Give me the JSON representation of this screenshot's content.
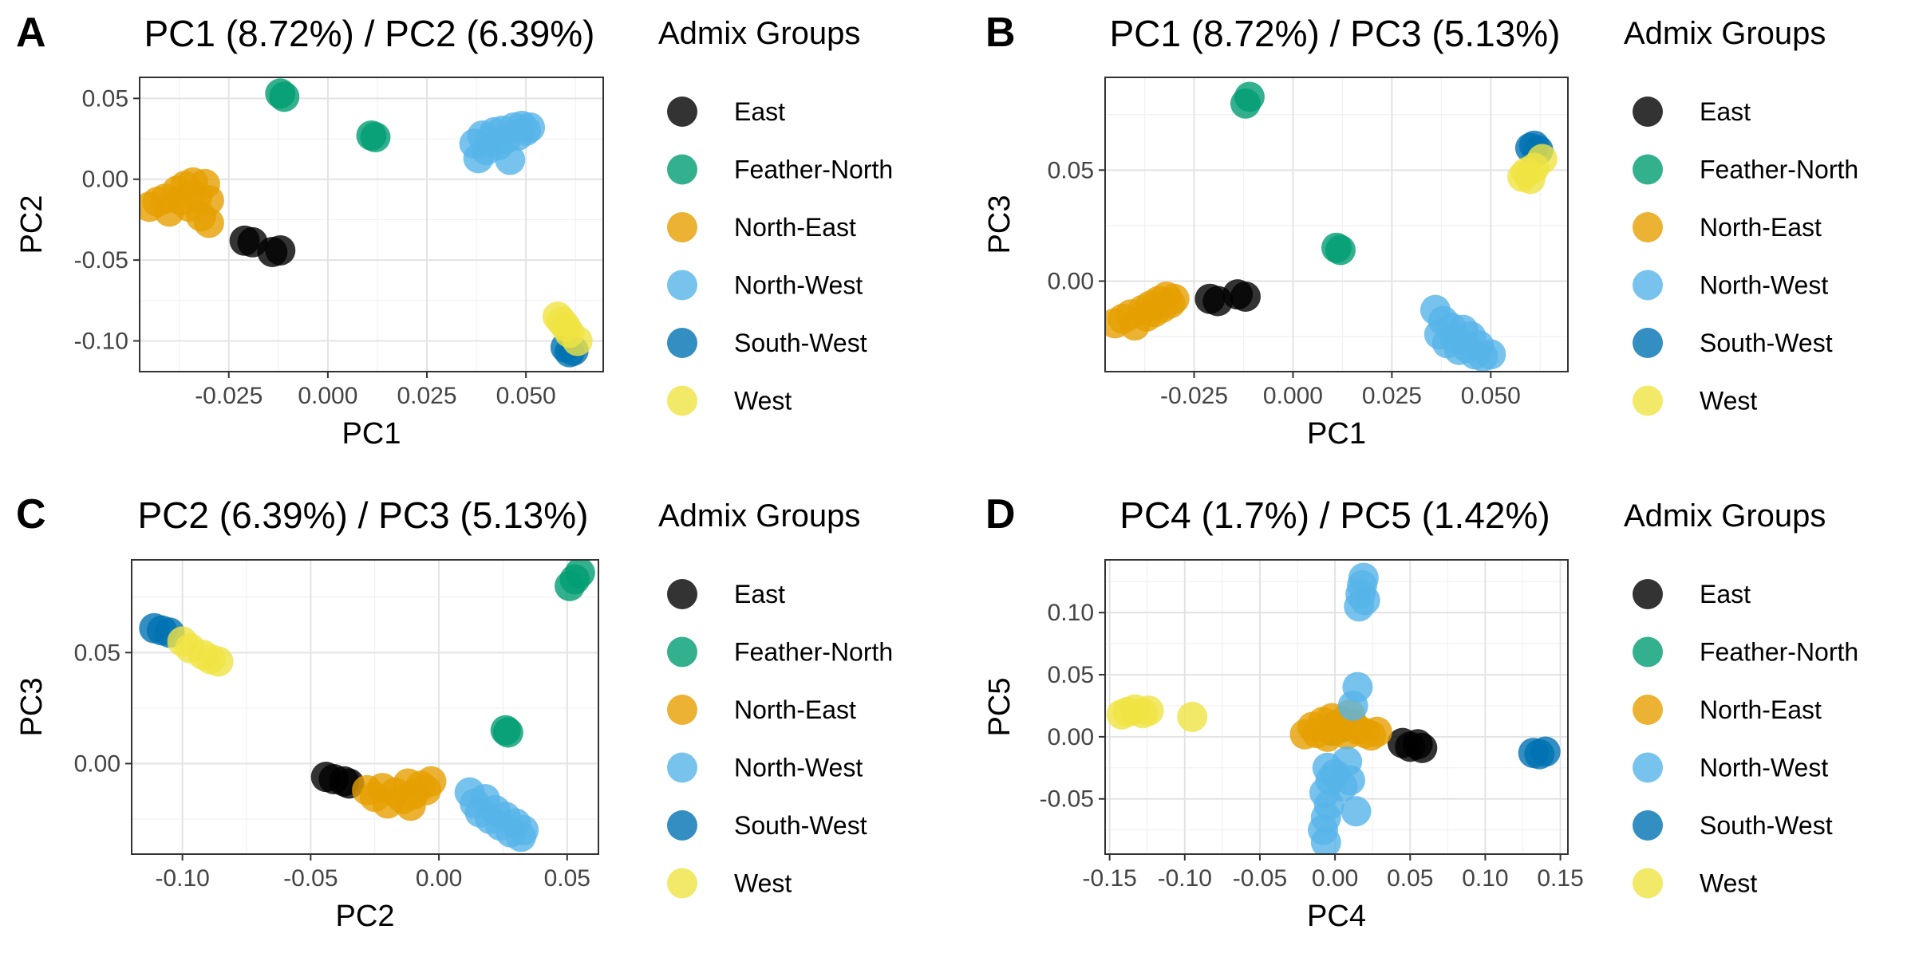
{
  "legend": {
    "title": "Admix Groups",
    "groups": [
      {
        "name": "East",
        "color": "#000000"
      },
      {
        "name": "Feather-North",
        "color": "#009E73"
      },
      {
        "name": "North-East",
        "color": "#E69F00"
      },
      {
        "name": "North-West",
        "color": "#56B4E9"
      },
      {
        "name": "South-West",
        "color": "#0072B2"
      },
      {
        "name": "West",
        "color": "#F0E442"
      }
    ]
  },
  "chart_data": [
    {
      "panel": "A",
      "type": "scatter",
      "title": "PC1 (8.72%) / PC2 (6.39%)",
      "xlabel": "PC1",
      "ylabel": "PC2",
      "xlim": [
        -0.0475,
        0.0695
      ],
      "ylim": [
        -0.119,
        0.063
      ],
      "xticks": [
        -0.025,
        0.0,
        0.025,
        0.05
      ],
      "xtick_labels": [
        "-0.025",
        "0.000",
        "0.025",
        "0.050"
      ],
      "yticks": [
        -0.1,
        -0.05,
        0.0,
        0.05
      ],
      "ytick_labels": [
        "-0.10",
        "-0.05",
        "0.00",
        "0.05"
      ],
      "grid": true,
      "legend_position": "right",
      "series": [
        {
          "name": "East",
          "points": [
            [
              -0.021,
              -0.038
            ],
            [
              -0.019,
              -0.039
            ],
            [
              -0.014,
              -0.045
            ],
            [
              -0.012,
              -0.044
            ]
          ]
        },
        {
          "name": "Feather-North",
          "points": [
            [
              -0.012,
              0.053
            ],
            [
              -0.011,
              0.051
            ],
            [
              0.011,
              0.027
            ],
            [
              0.012,
              0.026
            ]
          ]
        },
        {
          "name": "North-East",
          "points": [
            [
              -0.045,
              -0.017
            ],
            [
              -0.043,
              -0.014
            ],
            [
              -0.041,
              -0.012
            ],
            [
              -0.04,
              -0.02
            ],
            [
              -0.038,
              -0.007
            ],
            [
              -0.037,
              -0.013
            ],
            [
              -0.036,
              -0.004
            ],
            [
              -0.035,
              -0.017
            ],
            [
              -0.034,
              -0.002
            ],
            [
              -0.033,
              -0.011
            ],
            [
              -0.032,
              -0.023
            ],
            [
              -0.031,
              -0.003
            ],
            [
              -0.03,
              -0.027
            ],
            [
              -0.03,
              -0.013
            ]
          ]
        },
        {
          "name": "North-West",
          "points": [
            [
              0.037,
              0.022
            ],
            [
              0.038,
              0.013
            ],
            [
              0.039,
              0.027
            ],
            [
              0.04,
              0.018
            ],
            [
              0.041,
              0.024
            ],
            [
              0.042,
              0.029
            ],
            [
              0.043,
              0.021
            ],
            [
              0.044,
              0.03
            ],
            [
              0.045,
              0.025
            ],
            [
              0.046,
              0.012
            ],
            [
              0.047,
              0.032
            ],
            [
              0.048,
              0.027
            ],
            [
              0.049,
              0.033
            ],
            [
              0.05,
              0.03
            ],
            [
              0.051,
              0.032
            ]
          ]
        },
        {
          "name": "South-West",
          "points": [
            [
              0.06,
              -0.104
            ],
            [
              0.061,
              -0.107
            ],
            [
              0.062,
              -0.106
            ]
          ]
        },
        {
          "name": "West",
          "points": [
            [
              0.058,
              -0.085
            ],
            [
              0.059,
              -0.088
            ],
            [
              0.06,
              -0.091
            ],
            [
              0.061,
              -0.095
            ],
            [
              0.063,
              -0.1
            ]
          ]
        }
      ]
    },
    {
      "panel": "B",
      "type": "scatter",
      "title": "PC1 (8.72%) / PC3 (5.13%)",
      "xlabel": "PC1",
      "ylabel": "PC3",
      "xlim": [
        -0.0475,
        0.0695
      ],
      "ylim": [
        -0.0408,
        0.0918
      ],
      "xticks": [
        -0.025,
        0.0,
        0.025,
        0.05
      ],
      "xtick_labels": [
        "-0.025",
        "0.000",
        "0.025",
        "0.050"
      ],
      "yticks": [
        0.0,
        0.05
      ],
      "ytick_labels": [
        "0.00",
        "0.05"
      ],
      "grid": true,
      "legend_position": "right",
      "series": [
        {
          "name": "East",
          "points": [
            [
              -0.021,
              -0.008
            ],
            [
              -0.019,
              -0.009
            ],
            [
              -0.014,
              -0.006
            ],
            [
              -0.012,
              -0.007
            ]
          ]
        },
        {
          "name": "Feather-North",
          "points": [
            [
              -0.012,
              0.08
            ],
            [
              -0.011,
              0.083
            ],
            [
              0.011,
              0.015
            ],
            [
              0.012,
              0.014
            ]
          ]
        },
        {
          "name": "North-East",
          "points": [
            [
              -0.045,
              -0.019
            ],
            [
              -0.043,
              -0.017
            ],
            [
              -0.041,
              -0.015
            ],
            [
              -0.04,
              -0.02
            ],
            [
              -0.038,
              -0.013
            ],
            [
              -0.037,
              -0.016
            ],
            [
              -0.036,
              -0.011
            ],
            [
              -0.035,
              -0.014
            ],
            [
              -0.034,
              -0.009
            ],
            [
              -0.033,
              -0.012
            ],
            [
              -0.032,
              -0.007
            ],
            [
              -0.031,
              -0.01
            ],
            [
              -0.03,
              -0.008
            ]
          ]
        },
        {
          "name": "North-West",
          "points": [
            [
              0.036,
              -0.013
            ],
            [
              0.037,
              -0.024
            ],
            [
              0.038,
              -0.018
            ],
            [
              0.039,
              -0.028
            ],
            [
              0.04,
              -0.021
            ],
            [
              0.041,
              -0.026
            ],
            [
              0.042,
              -0.031
            ],
            [
              0.043,
              -0.022
            ],
            [
              0.044,
              -0.03
            ],
            [
              0.045,
              -0.025
            ],
            [
              0.046,
              -0.033
            ],
            [
              0.047,
              -0.029
            ],
            [
              0.048,
              -0.034
            ],
            [
              0.05,
              -0.033
            ]
          ]
        },
        {
          "name": "South-West",
          "points": [
            [
              0.06,
              0.06
            ],
            [
              0.061,
              0.061
            ],
            [
              0.062,
              0.059
            ]
          ]
        },
        {
          "name": "West",
          "points": [
            [
              0.058,
              0.047
            ],
            [
              0.059,
              0.049
            ],
            [
              0.06,
              0.046
            ],
            [
              0.061,
              0.051
            ],
            [
              0.063,
              0.055
            ]
          ]
        }
      ]
    },
    {
      "panel": "C",
      "type": "scatter",
      "title": "PC2 (6.39%) / PC3 (5.13%)",
      "xlabel": "PC2",
      "ylabel": "PC3",
      "xlim": [
        -0.1198,
        0.0622
      ],
      "ylim": [
        -0.0408,
        0.0918
      ],
      "xticks": [
        -0.1,
        -0.05,
        0.0,
        0.05
      ],
      "xtick_labels": [
        "-0.10",
        "-0.05",
        "0.00",
        "0.05"
      ],
      "yticks": [
        0.0,
        0.05
      ],
      "ytick_labels": [
        "0.00",
        "0.05"
      ],
      "grid": true,
      "legend_position": "right",
      "series": [
        {
          "name": "East",
          "points": [
            [
              -0.044,
              -0.006
            ],
            [
              -0.041,
              -0.007
            ],
            [
              -0.037,
              -0.008
            ],
            [
              -0.035,
              -0.009
            ]
          ]
        },
        {
          "name": "Feather-North",
          "points": [
            [
              0.026,
              0.015
            ],
            [
              0.027,
              0.014
            ],
            [
              0.051,
              0.08
            ],
            [
              0.053,
              0.083
            ],
            [
              0.055,
              0.086
            ]
          ]
        },
        {
          "name": "North-East",
          "points": [
            [
              -0.028,
              -0.012
            ],
            [
              -0.025,
              -0.015
            ],
            [
              -0.022,
              -0.011
            ],
            [
              -0.02,
              -0.018
            ],
            [
              -0.017,
              -0.013
            ],
            [
              -0.014,
              -0.016
            ],
            [
              -0.012,
              -0.009
            ],
            [
              -0.01,
              -0.014
            ],
            [
              -0.007,
              -0.01
            ],
            [
              -0.005,
              -0.012
            ],
            [
              -0.003,
              -0.008
            ],
            [
              -0.011,
              -0.019
            ]
          ]
        },
        {
          "name": "North-West",
          "points": [
            [
              0.012,
              -0.013
            ],
            [
              0.014,
              -0.018
            ],
            [
              0.016,
              -0.022
            ],
            [
              0.018,
              -0.016
            ],
            [
              0.02,
              -0.025
            ],
            [
              0.022,
              -0.021
            ],
            [
              0.024,
              -0.028
            ],
            [
              0.026,
              -0.024
            ],
            [
              0.028,
              -0.031
            ],
            [
              0.03,
              -0.027
            ],
            [
              0.032,
              -0.033
            ],
            [
              0.033,
              -0.03
            ]
          ]
        },
        {
          "name": "South-West",
          "points": [
            [
              -0.111,
              0.061
            ],
            [
              -0.108,
              0.06
            ],
            [
              -0.105,
              0.059
            ]
          ]
        },
        {
          "name": "West",
          "points": [
            [
              -0.1,
              0.055
            ],
            [
              -0.097,
              0.052
            ],
            [
              -0.092,
              0.049
            ],
            [
              -0.089,
              0.047
            ],
            [
              -0.086,
              0.046
            ]
          ]
        }
      ]
    },
    {
      "panel": "D",
      "type": "scatter",
      "title": "PC4 (1.7%) / PC5 (1.42%)",
      "xlabel": "PC4",
      "ylabel": "PC5",
      "xlim": [
        -0.153,
        0.155
      ],
      "ylim": [
        -0.0945,
        0.1425
      ],
      "xticks": [
        -0.15,
        -0.1,
        -0.05,
        0.0,
        0.05,
        0.1,
        0.15
      ],
      "xtick_labels": [
        "-0.15",
        "-0.10",
        "-0.05",
        "0.00",
        "0.05",
        "0.10",
        "0.15"
      ],
      "yticks": [
        -0.05,
        0.0,
        0.05,
        0.1
      ],
      "ytick_labels": [
        "-0.05",
        "0.00",
        "0.05",
        "0.10"
      ],
      "grid": true,
      "legend_position": "right",
      "series": [
        {
          "name": "East",
          "points": [
            [
              0.045,
              -0.005
            ],
            [
              0.05,
              -0.008
            ],
            [
              0.055,
              -0.006
            ],
            [
              0.058,
              -0.009
            ]
          ]
        },
        {
          "name": "Feather-North",
          "points": [
            [
              -0.002,
              0.005
            ],
            [
              0.002,
              0.01
            ],
            [
              0.005,
              0.008
            ]
          ]
        },
        {
          "name": "North-East",
          "points": [
            [
              -0.02,
              0.002
            ],
            [
              -0.015,
              0.008
            ],
            [
              -0.012,
              0.003
            ],
            [
              -0.008,
              0.012
            ],
            [
              -0.005,
              0.0
            ],
            [
              -0.002,
              0.015
            ],
            [
              0.0,
              0.005
            ],
            [
              0.005,
              0.012
            ],
            [
              0.008,
              0.002
            ],
            [
              0.012,
              0.01
            ],
            [
              0.015,
              0.006
            ],
            [
              0.02,
              0.003
            ],
            [
              0.024,
              0.001
            ],
            [
              0.028,
              0.004
            ],
            [
              0.01,
              0.018
            ]
          ]
        },
        {
          "name": "North-West",
          "points": [
            [
              -0.008,
              -0.075
            ],
            [
              -0.006,
              -0.065
            ],
            [
              -0.004,
              -0.055
            ],
            [
              -0.007,
              -0.045
            ],
            [
              -0.003,
              -0.035
            ],
            [
              -0.005,
              -0.025
            ],
            [
              0.0,
              -0.03
            ],
            [
              0.005,
              -0.04
            ],
            [
              0.008,
              -0.02
            ],
            [
              0.01,
              -0.035
            ],
            [
              0.012,
              0.025
            ],
            [
              0.015,
              0.04
            ],
            [
              0.014,
              -0.06
            ],
            [
              0.016,
              0.105
            ],
            [
              0.017,
              0.115
            ],
            [
              0.018,
              0.122
            ],
            [
              0.019,
              0.128
            ],
            [
              0.02,
              0.11
            ],
            [
              -0.006,
              -0.085
            ]
          ]
        },
        {
          "name": "South-West",
          "points": [
            [
              0.132,
              -0.013
            ],
            [
              0.136,
              -0.014
            ],
            [
              0.14,
              -0.012
            ]
          ]
        },
        {
          "name": "West",
          "points": [
            [
              -0.142,
              0.018
            ],
            [
              -0.138,
              0.02
            ],
            [
              -0.133,
              0.022
            ],
            [
              -0.128,
              0.019
            ],
            [
              -0.124,
              0.021
            ],
            [
              -0.095,
              0.016
            ]
          ]
        }
      ]
    }
  ]
}
